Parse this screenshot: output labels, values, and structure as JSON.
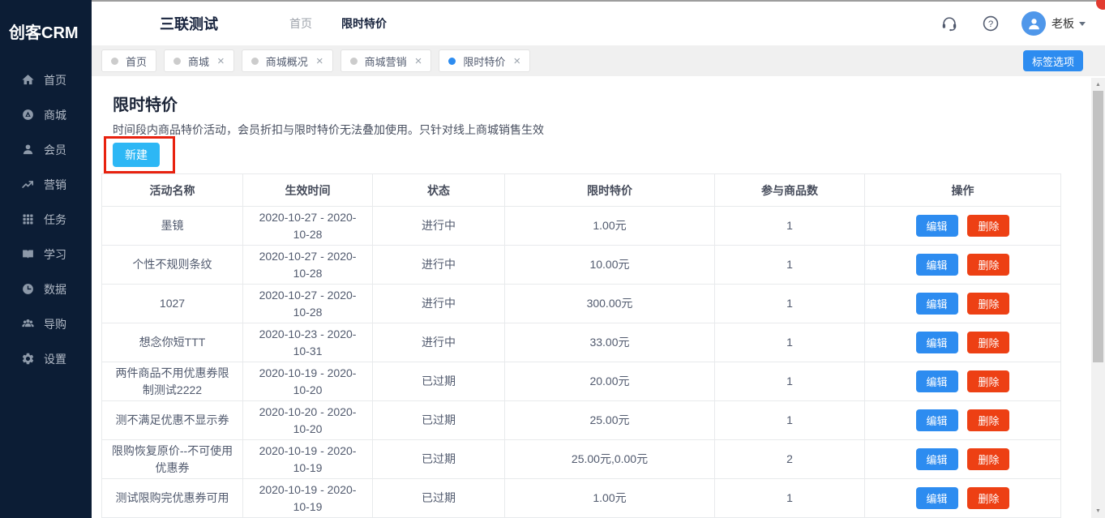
{
  "app": {
    "logo_text": "创客CRM"
  },
  "header": {
    "company_name": "三联测试",
    "breadcrumb": [
      {
        "label": "首页"
      },
      {
        "label": "限时特价"
      }
    ],
    "icons": [
      {
        "name": "headset-icon"
      },
      {
        "name": "help-icon"
      }
    ],
    "user_name": "老板",
    "avatar_icon": "user-avatar-icon"
  },
  "sidebar": {
    "items": [
      {
        "name": "home",
        "label": "首页",
        "icon": "home-icon"
      },
      {
        "name": "mall",
        "label": "商城",
        "icon": "mall-icon"
      },
      {
        "name": "members",
        "label": "会员",
        "icon": "member-icon"
      },
      {
        "name": "marketing",
        "label": "营销",
        "icon": "marketing-icon"
      },
      {
        "name": "tasks",
        "label": "任务",
        "icon": "task-grid-icon"
      },
      {
        "name": "learning",
        "label": "学习",
        "icon": "book-icon"
      },
      {
        "name": "data",
        "label": "数据",
        "icon": "pie-chart-icon"
      },
      {
        "name": "guide",
        "label": "导购",
        "icon": "people-icon"
      },
      {
        "name": "settings",
        "label": "设置",
        "icon": "gear-icon"
      }
    ]
  },
  "tab_bar": {
    "tabs": [
      {
        "name": "home",
        "label": "首页",
        "active": false,
        "closable": false
      },
      {
        "name": "mall",
        "label": "商城",
        "active": false,
        "closable": true
      },
      {
        "name": "mall-overview",
        "label": "商城概况",
        "active": false,
        "closable": true
      },
      {
        "name": "mall-marketing",
        "label": "商城营销",
        "active": false,
        "closable": true
      },
      {
        "name": "flash-sale",
        "label": "限时特价",
        "active": true,
        "closable": true
      }
    ],
    "options_button_label": "标签选项"
  },
  "page": {
    "title": "限时特价",
    "description": "时间段内商品特价活动，会员折扣与限时特价无法叠加使用。只针对线上商城销售生效",
    "new_button_label": "新建"
  },
  "table": {
    "columns": [
      "活动名称",
      "生效时间",
      "状态",
      "限时特价",
      "参与商品数",
      "操作"
    ],
    "action_labels": {
      "edit": "编辑",
      "delete": "删除"
    },
    "rows": [
      {
        "name": "墨镜",
        "period": "2020-10-27 - 2020-10-28",
        "status": "进行中",
        "price": "1.00元",
        "product_count": "1"
      },
      {
        "name": "个性不规则条纹",
        "period": "2020-10-27 - 2020-10-28",
        "status": "进行中",
        "price": "10.00元",
        "product_count": "1"
      },
      {
        "name": "1027",
        "period": "2020-10-27 - 2020-10-28",
        "status": "进行中",
        "price": "300.00元",
        "product_count": "1"
      },
      {
        "name": "想念你短TTT",
        "period": "2020-10-23 - 2020-10-31",
        "status": "进行中",
        "price": "33.00元",
        "product_count": "1"
      },
      {
        "name": "两件商品不用优惠券限制测试2222",
        "period": "2020-10-19 - 2020-10-20",
        "status": "已过期",
        "price": "20.00元",
        "product_count": "1"
      },
      {
        "name": "测不满足优惠不显示券",
        "period": "2020-10-20 - 2020-10-20",
        "status": "已过期",
        "price": "25.00元",
        "product_count": "1"
      },
      {
        "name": "限购恢复原价--不可使用优惠券",
        "period": "2020-10-19 - 2020-10-19",
        "status": "已过期",
        "price": "25.00元,0.00元",
        "product_count": "2"
      },
      {
        "name": "测试限购完优惠券可用",
        "period": "2020-10-19 - 2020-10-19",
        "status": "已过期",
        "price": "1.00元",
        "product_count": "1"
      }
    ]
  },
  "colors": {
    "primary_blue": "#2d8cf0",
    "new_button_cyan": "#2db7f5",
    "delete_red": "#ed4014",
    "sidebar_bg": "#0c1d35",
    "highlight_red": "#e8220f",
    "avatar_blue": "#4f97ea"
  }
}
